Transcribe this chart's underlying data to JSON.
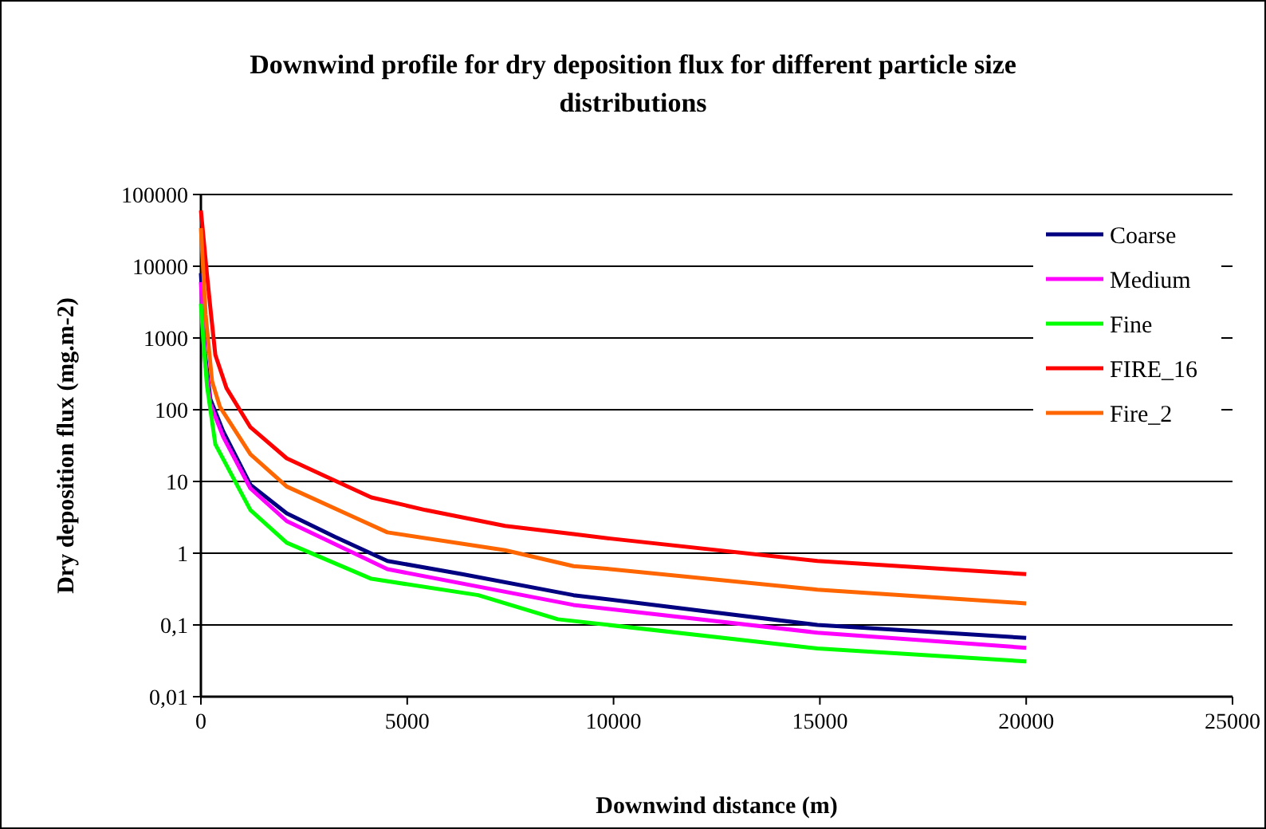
{
  "chart_data": {
    "type": "line",
    "title": "Downwind profile for dry deposition flux for different particle size distributions",
    "xlabel": "Downwind distance (m)",
    "ylabel": "Dry deposition flux (mg.m-2)",
    "log": "y",
    "grid": "y",
    "legend": "top right",
    "marker": "none",
    "line_style": "solid",
    "xlim": [
      0,
      25000
    ],
    "xticks": [
      0,
      5000,
      10000,
      15000,
      20000,
      25000
    ],
    "ylim": [
      0.01,
      100000
    ],
    "yticks": [
      {
        "value": 0.01,
        "label": "0,01"
      },
      {
        "value": 0.1,
        "label": "0,1"
      },
      1,
      10,
      100,
      1000,
      10000,
      100000
    ],
    "series": [
      {
        "name": "Coarse",
        "color": "#000080",
        "x": [
          0,
          100,
          230,
          540,
          1200,
          2080,
          3240,
          4520,
          6330,
          9030,
          14940,
          20000
        ],
        "values": [
          8000,
          600,
          140,
          50,
          9,
          3.6,
          1.7,
          0.78,
          0.51,
          0.26,
          0.1,
          0.066
        ]
      },
      {
        "name": "Medium",
        "color": "#ff00ff",
        "x": [
          0,
          100,
          230,
          540,
          1200,
          2080,
          4520,
          9030,
          14940,
          20000
        ],
        "values": [
          6000,
          500,
          120,
          42,
          8,
          2.8,
          0.6,
          0.19,
          0.078,
          0.048
        ]
      },
      {
        "name": "Fine",
        "color": "#00ff00",
        "x": [
          0,
          60,
          150,
          350,
          1200,
          2080,
          4130,
          6720,
          8650,
          14940,
          20000
        ],
        "values": [
          3000,
          900,
          210,
          33,
          4,
          1.4,
          0.44,
          0.26,
          0.12,
          0.047,
          0.031
        ]
      },
      {
        "name": "FIRE_16",
        "color": "#ff0000",
        "x": [
          0,
          150,
          230,
          350,
          620,
          1200,
          2080,
          2860,
          4130,
          5440,
          7370,
          9030,
          9920,
          14940,
          20000
        ],
        "values": [
          60000,
          7400,
          2600,
          580,
          200,
          57,
          21,
          13,
          6,
          4,
          2.4,
          1.85,
          1.6,
          0.78,
          0.51
        ]
      },
      {
        "name": "Fire_2",
        "color": "#ff6600",
        "x": [
          0,
          115,
          270,
          460,
          1200,
          2080,
          3750,
          4520,
          7370,
          9030,
          9920,
          14940,
          20000
        ],
        "values": [
          34000,
          2100,
          250,
          110,
          24,
          8.5,
          3.1,
          1.95,
          1.1,
          0.66,
          0.6,
          0.31,
          0.2
        ]
      }
    ]
  }
}
